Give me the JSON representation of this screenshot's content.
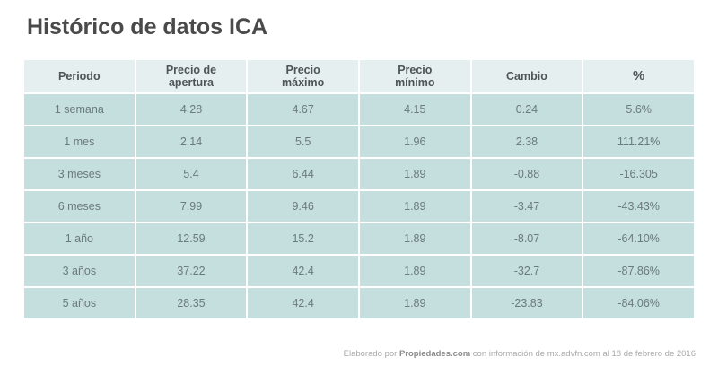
{
  "title": "Histórico de datos ICA",
  "table": {
    "headers": [
      "Periodo",
      "Precio de apertura",
      "Precio máximo",
      "Precio mínimo",
      "Cambio",
      "%"
    ],
    "header_lines": [
      [
        "Periodo"
      ],
      [
        "Precio de",
        "apertura"
      ],
      [
        "Precio",
        "máximo"
      ],
      [
        "Precio",
        "mínimo"
      ],
      [
        "Cambio"
      ],
      [
        "%"
      ]
    ],
    "rows": [
      [
        "1 semana",
        "4.28",
        "4.67",
        "4.15",
        "0.24",
        "5.6%"
      ],
      [
        "1 mes",
        "2.14",
        "5.5",
        "1.96",
        "2.38",
        "111.21%"
      ],
      [
        "3 meses",
        "5.4",
        "6.44",
        "1.89",
        "-0.88",
        "-16.305"
      ],
      [
        "6 meses",
        "7.99",
        "9.46",
        "1.89",
        "-3.47",
        "-43.43%"
      ],
      [
        "1 año",
        "12.59",
        "15.2",
        "1.89",
        "-8.07",
        "-64.10%"
      ],
      [
        "3 años",
        "37.22",
        "42.4",
        "1.89",
        "-32.7",
        "-87.86%"
      ],
      [
        "5 años",
        "28.35",
        "42.4",
        "1.89",
        "-23.83",
        "-84.06%"
      ]
    ]
  },
  "footer": {
    "prefix": "Elaborado por ",
    "brand": "Propiedades.com",
    "suffix": " con información de mx.advfn.com al 18 de febrero de 2016"
  },
  "colors": {
    "header_bg": "#e6efef",
    "row_bg": "#c4dfdd",
    "title": "#4a4a4a",
    "cell_text": "#6b7a7a",
    "border": "#ffffff"
  }
}
